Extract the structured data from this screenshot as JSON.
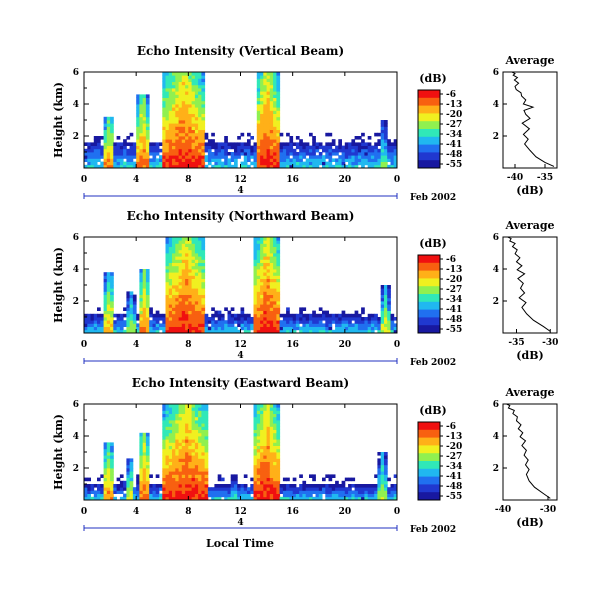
{
  "figure": {
    "date_label": "Feb 2002",
    "bottom_xlabel": "Local Time",
    "day_marker_label": "4"
  },
  "colorbar": {
    "unit": "(dB)",
    "ticks": [
      "-6",
      "-13",
      "-20",
      "-27",
      "-34",
      "-41",
      "-48",
      "-55"
    ],
    "colors": [
      "#f01010",
      "#f86010",
      "#ffb018",
      "#f0f020",
      "#90f050",
      "#30e8b8",
      "#20b8f0",
      "#2070f0",
      "#2038d0",
      "#1818a0"
    ]
  },
  "chart_data": [
    {
      "type": "heatmap",
      "title": "Echo Intensity (Vertical Beam)",
      "ylabel": "Height (km)",
      "xlim": [
        0,
        24
      ],
      "ylim": [
        0,
        6
      ],
      "xticks": [
        "0",
        "4",
        "8",
        "12",
        "16",
        "20",
        "0"
      ],
      "yticks": [
        "2",
        "4",
        "6"
      ],
      "zlim": [
        -55,
        -6
      ],
      "zunit": "dB",
      "base_top_km": 1.7,
      "events": [
        {
          "t0": 1.6,
          "t1": 2.3,
          "top": 3.2,
          "peak": -12
        },
        {
          "t0": 4.1,
          "t1": 4.9,
          "top": 4.6,
          "peak": -10
        },
        {
          "t0": 6.0,
          "t1": 9.3,
          "top": 6.0,
          "peak": -6
        },
        {
          "t0": 13.2,
          "t1": 14.9,
          "top": 6.0,
          "peak": -6
        },
        {
          "t0": 22.7,
          "t1": 23.2,
          "top": 3.0,
          "peak": -25
        }
      ]
    },
    {
      "type": "line",
      "title": "Average",
      "xlabel": "(dB)",
      "xlim": [
        -42,
        -33
      ],
      "ylim": [
        0,
        6
      ],
      "xticks": [
        "-40",
        "-35"
      ],
      "yticks": [
        "2",
        "4",
        "6"
      ],
      "x": [
        -33.5,
        -35,
        -36.5,
        -37.5,
        -38.4,
        -37.8,
        -38.6,
        -37.6,
        -38.8,
        -37.5,
        -38.2,
        -38.5,
        -37.0,
        -38.6,
        -38.2,
        -38.9,
        -39.0,
        -39.8,
        -40.0,
        -39.4,
        -40.1,
        -39.6,
        -40.3,
        -40.0,
        -40.5
      ],
      "y": [
        0.1,
        0.35,
        0.7,
        1.1,
        1.5,
        1.8,
        2.1,
        2.45,
        2.8,
        3.1,
        3.35,
        3.6,
        3.8,
        4.0,
        4.25,
        4.5,
        4.7,
        4.9,
        5.1,
        5.3,
        5.5,
        5.65,
        5.8,
        5.9,
        6.0
      ]
    },
    {
      "type": "heatmap",
      "title": "Echo Intensity (Northward Beam)",
      "ylabel": "Height (km)",
      "xlim": [
        0,
        24
      ],
      "ylim": [
        0,
        6
      ],
      "xticks": [
        "0",
        "4",
        "8",
        "12",
        "16",
        "20",
        "0"
      ],
      "yticks": [
        "2",
        "4",
        "6"
      ],
      "zlim": [
        -55,
        -6
      ],
      "zunit": "dB",
      "base_top_km": 1.2,
      "events": [
        {
          "t0": 1.6,
          "t1": 2.3,
          "top": 3.7,
          "peak": -14
        },
        {
          "t0": 3.3,
          "t1": 3.9,
          "top": 2.5,
          "peak": -22
        },
        {
          "t0": 4.3,
          "t1": 5.0,
          "top": 4.0,
          "peak": -11
        },
        {
          "t0": 6.3,
          "t1": 9.3,
          "top": 6.0,
          "peak": -6
        },
        {
          "t0": 13.1,
          "t1": 15.0,
          "top": 6.0,
          "peak": -6
        },
        {
          "t0": 22.8,
          "t1": 23.4,
          "top": 3.0,
          "peak": -20
        }
      ]
    },
    {
      "type": "line",
      "title": "Average",
      "xlabel": "(dB)",
      "xlim": [
        -37,
        -29
      ],
      "ylim": [
        0,
        6
      ],
      "xticks": [
        "-35",
        "-30"
      ],
      "yticks": [
        "2",
        "4",
        "6"
      ],
      "x": [
        -30.0,
        -31.0,
        -32.5,
        -33.5,
        -34.2,
        -33.6,
        -34.6,
        -33.8,
        -34.4,
        -34.0,
        -34.8,
        -33.8,
        -34.9,
        -34.2,
        -35.0,
        -34.5,
        -35.2,
        -34.9,
        -35.6,
        -35.2,
        -36.0,
        -35.8,
        -36.3
      ],
      "y": [
        0.1,
        0.4,
        0.8,
        1.2,
        1.6,
        1.9,
        2.2,
        2.5,
        2.8,
        3.1,
        3.4,
        3.7,
        3.95,
        4.2,
        4.45,
        4.7,
        4.95,
        5.2,
        5.4,
        5.6,
        5.75,
        5.9,
        6.0
      ]
    },
    {
      "type": "heatmap",
      "title": "Echo Intensity (Eastward Beam)",
      "ylabel": "Height (km)",
      "xlim": [
        0,
        24
      ],
      "ylim": [
        0,
        6
      ],
      "xticks": [
        "0",
        "4",
        "8",
        "12",
        "16",
        "20",
        "0"
      ],
      "yticks": [
        "2",
        "4",
        "6"
      ],
      "zlim": [
        -55,
        -6
      ],
      "zunit": "dB",
      "base_top_km": 1.0,
      "events": [
        {
          "t0": 1.5,
          "t1": 2.3,
          "top": 3.5,
          "peak": -13
        },
        {
          "t0": 3.3,
          "t1": 3.8,
          "top": 2.6,
          "peak": -20
        },
        {
          "t0": 4.2,
          "t1": 5.0,
          "top": 4.2,
          "peak": -10
        },
        {
          "t0": 6.1,
          "t1": 9.6,
          "top": 6.0,
          "peak": -6
        },
        {
          "t0": 11.3,
          "t1": 11.7,
          "top": 2.0,
          "peak": -30
        },
        {
          "t0": 13.0,
          "t1": 15.0,
          "top": 6.0,
          "peak": -6
        },
        {
          "t0": 22.6,
          "t1": 23.2,
          "top": 3.0,
          "peak": -22
        }
      ]
    },
    {
      "type": "line",
      "title": "Average",
      "xlabel": "(dB)",
      "xlim": [
        -40,
        -28
      ],
      "ylim": [
        0,
        6
      ],
      "xticks": [
        "-40",
        "-30"
      ],
      "yticks": [
        "2",
        "4",
        "6"
      ],
      "x": [
        -29.5,
        -31.0,
        -33.0,
        -34.2,
        -34.8,
        -34.2,
        -35.0,
        -34.4,
        -35.3,
        -34.8,
        -35.8,
        -35.0,
        -36.2,
        -35.6,
        -36.6,
        -36.0,
        -37.0,
        -36.8,
        -37.8,
        -37.5,
        -38.8,
        -38.5,
        -39.2
      ],
      "y": [
        0.1,
        0.4,
        0.8,
        1.2,
        1.6,
        1.9,
        2.2,
        2.5,
        2.8,
        3.1,
        3.4,
        3.7,
        3.95,
        4.2,
        4.45,
        4.7,
        4.95,
        5.2,
        5.4,
        5.6,
        5.75,
        5.9,
        6.0
      ]
    }
  ]
}
